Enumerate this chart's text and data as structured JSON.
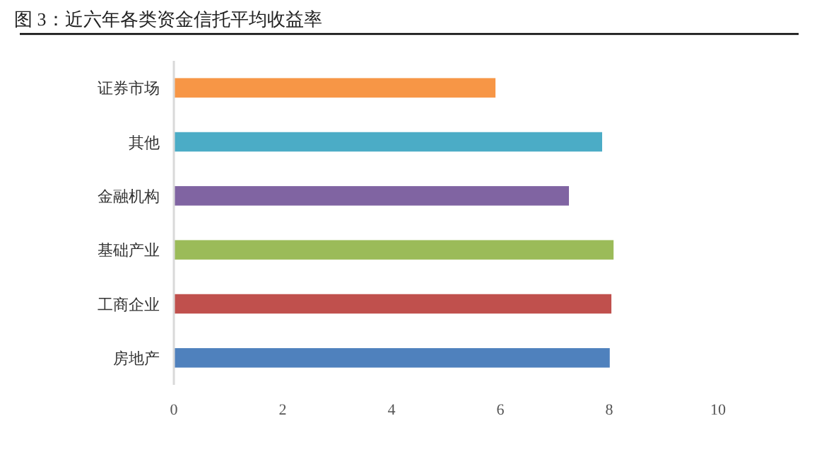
{
  "chart_data": {
    "type": "bar",
    "orientation": "horizontal",
    "title": "图 3：近六年各类资金信托平均收益率",
    "categories": [
      "证券市场",
      "其他",
      "金融机构",
      "基础产业",
      "工商企业",
      "房地产"
    ],
    "values": [
      5.91,
      7.87,
      7.26,
      8.08,
      8.04,
      8.01
    ],
    "colors": [
      "#f79646",
      "#4bacc6",
      "#8064a2",
      "#9bbb59",
      "#c0504d",
      "#4f81bd"
    ],
    "xlim": [
      0,
      10
    ],
    "xticks": [
      0,
      2,
      4,
      6,
      8,
      10
    ]
  }
}
